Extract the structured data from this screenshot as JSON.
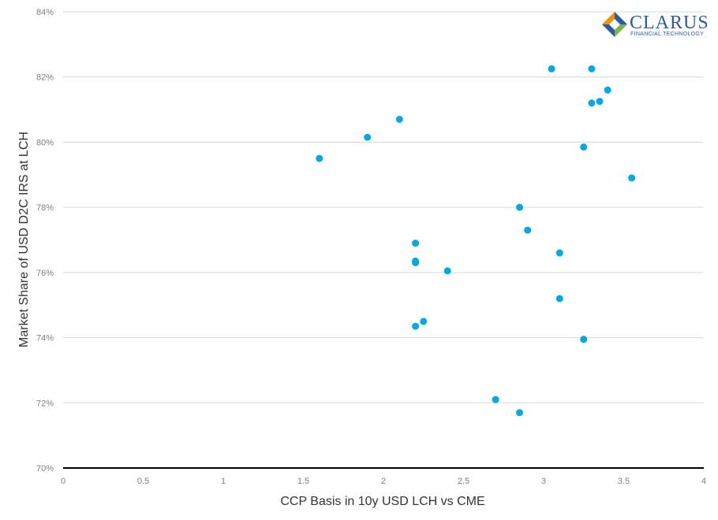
{
  "chart_data": {
    "type": "scatter",
    "xlabel": "CCP Basis in 10y USD LCH vs CME",
    "ylabel": "Market Share of USD D2C IRS at LCH",
    "xlim": [
      0,
      4
    ],
    "ylim": [
      70,
      84
    ],
    "x_ticks": [
      "0",
      "0.5",
      "1",
      "1.5",
      "2",
      "2.5",
      "3",
      "3.5",
      "4"
    ],
    "y_ticks": [
      "70%",
      "72%",
      "74%",
      "76%",
      "78%",
      "80%",
      "82%",
      "84%"
    ],
    "grid": "horizontal",
    "point_color": "#00a9e6",
    "points": [
      {
        "x": 1.6,
        "y": 79.5
      },
      {
        "x": 1.9,
        "y": 80.15
      },
      {
        "x": 2.1,
        "y": 80.7
      },
      {
        "x": 2.2,
        "y": 76.9
      },
      {
        "x": 2.2,
        "y": 76.35
      },
      {
        "x": 2.2,
        "y": 76.3
      },
      {
        "x": 2.2,
        "y": 74.35
      },
      {
        "x": 2.25,
        "y": 74.5
      },
      {
        "x": 2.4,
        "y": 76.05
      },
      {
        "x": 2.7,
        "y": 72.1
      },
      {
        "x": 2.85,
        "y": 78.0
      },
      {
        "x": 2.85,
        "y": 71.7
      },
      {
        "x": 2.9,
        "y": 77.3
      },
      {
        "x": 3.05,
        "y": 82.25
      },
      {
        "x": 3.1,
        "y": 76.6
      },
      {
        "x": 3.1,
        "y": 75.2
      },
      {
        "x": 3.25,
        "y": 79.85
      },
      {
        "x": 3.25,
        "y": 73.95
      },
      {
        "x": 3.3,
        "y": 82.25
      },
      {
        "x": 3.3,
        "y": 81.2
      },
      {
        "x": 3.35,
        "y": 81.25
      },
      {
        "x": 3.4,
        "y": 81.6
      },
      {
        "x": 3.55,
        "y": 78.9
      }
    ]
  },
  "logo": {
    "name": "CLARUS",
    "tagline": "FINANCIAL TECHNOLOGY",
    "colors": [
      "#f29200",
      "#2b5aa6",
      "#7ab648"
    ]
  }
}
